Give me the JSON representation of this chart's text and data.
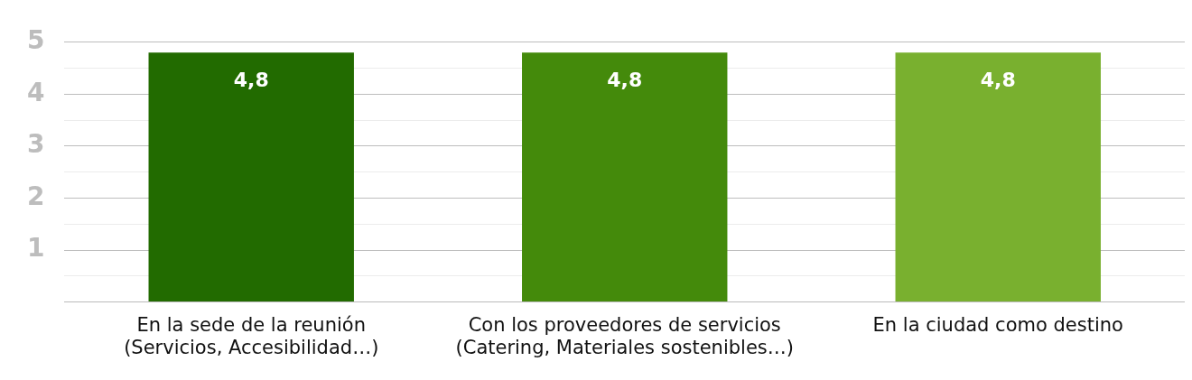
{
  "chart_data": {
    "type": "bar",
    "categories": [
      "En la sede de la reunión\n(Servicios, Accesibilidad…)",
      "Con los proveedores de servicios\n(Catering, Materiales sostenibles…)",
      "En la ciudad como destino"
    ],
    "values": [
      4.8,
      4.8,
      4.8
    ],
    "colors": [
      "#226b00",
      "#448a0b",
      "#79b02f"
    ],
    "value_labels": [
      "4,8",
      "4,8",
      "4,8"
    ],
    "ylim": [
      0,
      5
    ],
    "yticks": [
      {
        "value": 0,
        "label": null
      },
      {
        "value": 0.5,
        "label": null
      },
      1,
      {
        "value": 1.5,
        "label": null
      },
      2,
      {
        "value": 2.5,
        "label": null
      },
      3,
      {
        "value": 3.5,
        "label": null
      },
      4,
      {
        "value": 4.5,
        "label": null
      },
      5
    ],
    "grid": "y",
    "legend": false
  }
}
